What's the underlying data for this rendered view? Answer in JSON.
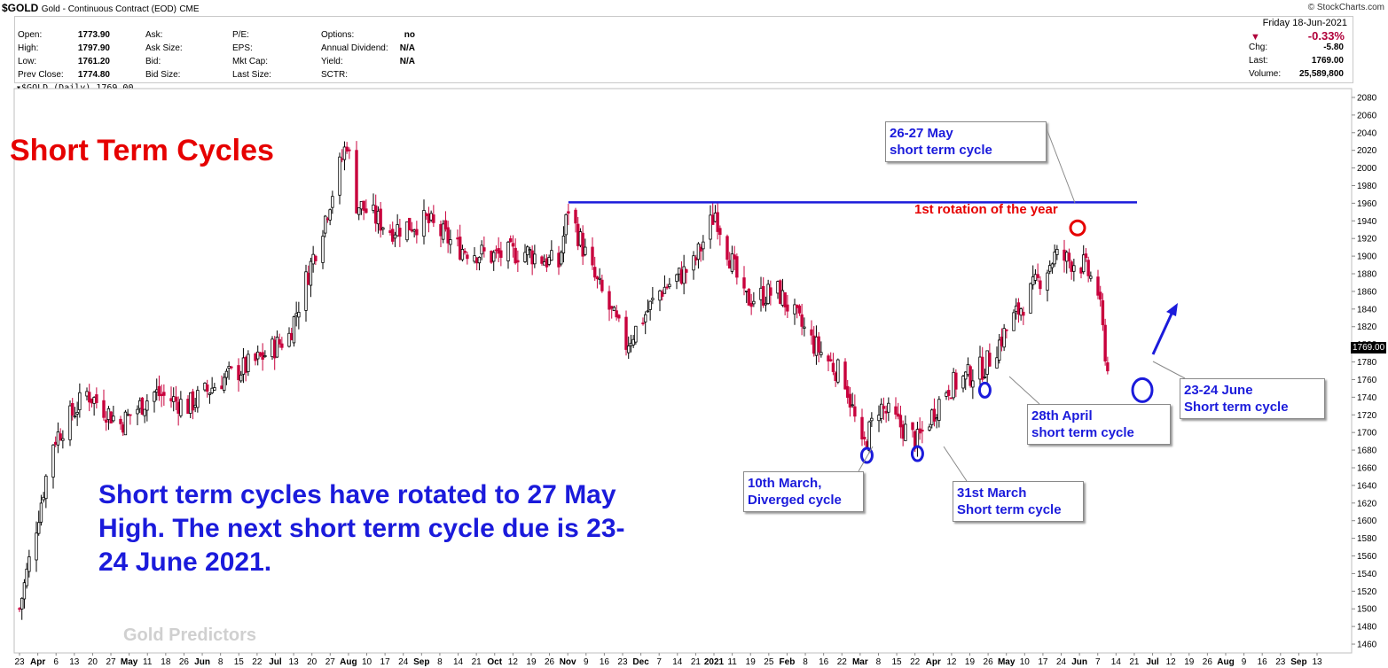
{
  "header": {
    "symbol": "$GOLD",
    "description": "Gold - Continuous Contract (EOD)",
    "exchange": "CME",
    "source": "© StockCharts.com"
  },
  "quote": {
    "left": [
      {
        "label": "Open:",
        "value": "1773.90"
      },
      {
        "label": "High:",
        "value": "1797.90"
      },
      {
        "label": "Low:",
        "value": "1761.20"
      },
      {
        "label": "Prev Close:",
        "value": "1774.80"
      }
    ],
    "col2": [
      "Ask:",
      "Ask Size:",
      "Bid:",
      "Bid Size:"
    ],
    "col3": [
      "P/E:",
      "EPS:",
      "Mkt Cap:",
      "Last Size:"
    ],
    "col4": [
      {
        "label": "Options:",
        "value": "no"
      },
      {
        "label": "Annual Dividend:",
        "value": "N/A"
      },
      {
        "label": "Yield:",
        "value": "N/A"
      },
      {
        "label": "SCTR:",
        "value": ""
      }
    ],
    "date": "Friday  18-Jun-2021",
    "change_pct": "-0.33%",
    "right": [
      {
        "label": "Chg:",
        "value": "-5.80"
      },
      {
        "label": "Last:",
        "value": "1769.00"
      },
      {
        "label": "Volume:",
        "value": "25,589,800"
      }
    ]
  },
  "symbol_line": "$GOLD (Daily) 1769.00",
  "annotations": {
    "title": "Short Term Cycles",
    "body": "Short term cycles have rotated to 27 May High. The next short term cycle due is 23-24 June 2021.",
    "watermark": "Gold Predictors",
    "red_label": "1st rotation of the year",
    "price_tag": "1769.00",
    "callouts": [
      {
        "line1": "26-27 May",
        "line2": "short term cycle"
      },
      {
        "line1": "10th March,",
        "line2": "Diverged cycle"
      },
      {
        "line1": "31st March",
        "line2": "Short term cycle"
      },
      {
        "line1": "28th April",
        "line2": "short term cycle"
      },
      {
        "line1": "23-24 June",
        "line2": "Short term cycle"
      }
    ]
  },
  "colors": {
    "up": "#000000",
    "down": "#c8003c",
    "annotation_blue": "#1b1bdb",
    "annotation_red": "#e60000"
  },
  "chart_data": {
    "type": "candlestick",
    "title": "$GOLD (Daily) 1769.00",
    "ylim": [
      1450,
      2090
    ],
    "yticks": [
      1460,
      1480,
      1500,
      1520,
      1540,
      1560,
      1580,
      1600,
      1620,
      1640,
      1660,
      1680,
      1700,
      1720,
      1740,
      1760,
      1780,
      1800,
      1820,
      1840,
      1860,
      1880,
      1900,
      1920,
      1940,
      1960,
      1980,
      2000,
      2020,
      2040,
      2060,
      2080
    ],
    "x_labels": [
      "23",
      "Apr",
      "6",
      "13",
      "20",
      "27",
      "May",
      "11",
      "18",
      "26",
      "Jun",
      "8",
      "15",
      "22",
      "Jul",
      "13",
      "20",
      "27",
      "Aug",
      "10",
      "17",
      "24",
      "Sep",
      "8",
      "14",
      "21",
      "Oct",
      "12",
      "19",
      "26",
      "Nov",
      "9",
      "16",
      "23",
      "Dec",
      "7",
      "14",
      "21",
      "2021",
      "11",
      "19",
      "25",
      "Feb",
      "8",
      "16",
      "22",
      "Mar",
      "8",
      "15",
      "22",
      "Apr",
      "12",
      "19",
      "26",
      "May",
      "10",
      "17",
      "24",
      "Jun",
      "7",
      "14",
      "21",
      "Jul",
      "12",
      "19",
      "26",
      "Aug",
      "9",
      "16",
      "23",
      "Sep",
      "13"
    ],
    "x": [
      "2020-03-23",
      "2020-04-06",
      "2020-04-20",
      "2020-05-04",
      "2020-05-18",
      "2020-06-01",
      "2020-06-15",
      "2020-06-29",
      "2020-07-13",
      "2020-07-27",
      "2020-08-06",
      "2020-08-10",
      "2020-08-24",
      "2020-09-08",
      "2020-09-21",
      "2020-10-05",
      "2020-10-19",
      "2020-11-02",
      "2020-11-06",
      "2020-11-16",
      "2020-11-30",
      "2020-12-14",
      "2020-12-28",
      "2021-01-06",
      "2021-01-18",
      "2021-02-01",
      "2021-02-16",
      "2021-03-01",
      "2021-03-08",
      "2021-03-15",
      "2021-03-31",
      "2021-04-12",
      "2021-04-28",
      "2021-05-10",
      "2021-05-27",
      "2021-06-08",
      "2021-06-14",
      "2021-06-18"
    ],
    "close": [
      1500,
      1690,
      1745,
      1710,
      1745,
      1730,
      1760,
      1780,
      1810,
      1935,
      2030,
      1960,
      1930,
      1940,
      1910,
      1900,
      1905,
      1890,
      1955,
      1880,
      1800,
      1860,
      1890,
      1950,
      1850,
      1860,
      1800,
      1760,
      1680,
      1730,
      1690,
      1750,
      1775,
      1830,
      1900,
      1890,
      1860,
      1769
    ],
    "levels": [
      {
        "name": "resistance",
        "y": 1961,
        "x_start": "2020-11-06",
        "x_end": "2021-06-21"
      }
    ],
    "cycle_lows": [
      "2021-03-10",
      "2021-03-31",
      "2021-04-28",
      "2021-06-23"
    ],
    "cycle_highs": [
      "2021-05-27"
    ]
  }
}
